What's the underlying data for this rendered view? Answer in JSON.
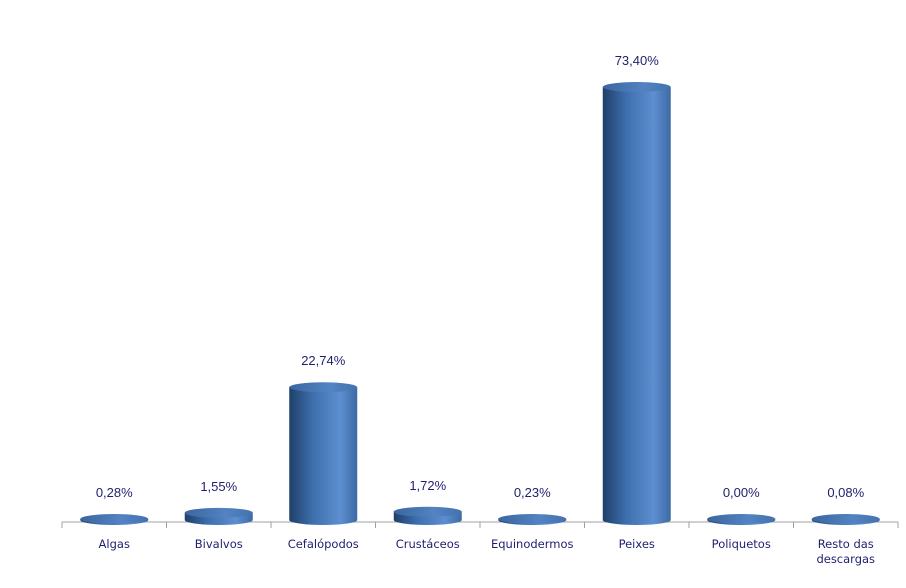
{
  "chart_data": {
    "type": "bar",
    "style": "3d-cylinder",
    "categories": [
      "Algas",
      "Bivalvos",
      "Cefalópodos",
      "Crustáceos",
      "Equinodermos",
      "Peixes",
      "Poliquetos",
      "Resto das descargas"
    ],
    "values": [
      0.28,
      1.55,
      22.74,
      1.72,
      0.23,
      73.4,
      0.0,
      0.08
    ],
    "data_labels": [
      "0,28%",
      "1,55%",
      "22,74%",
      "1,72%",
      "0,23%",
      "73,40%",
      "0,00%",
      "0,08%"
    ],
    "title": "",
    "xlabel": "",
    "ylabel": "",
    "ylim": [
      0,
      75
    ],
    "grid": false,
    "legend": "none",
    "colors": {
      "bar": "#4f81bd",
      "bar_dark": "#2a4f80",
      "bar_light": "#6d9ad6",
      "text": "#1f1f6e",
      "axis": "#a0a0a0"
    }
  }
}
